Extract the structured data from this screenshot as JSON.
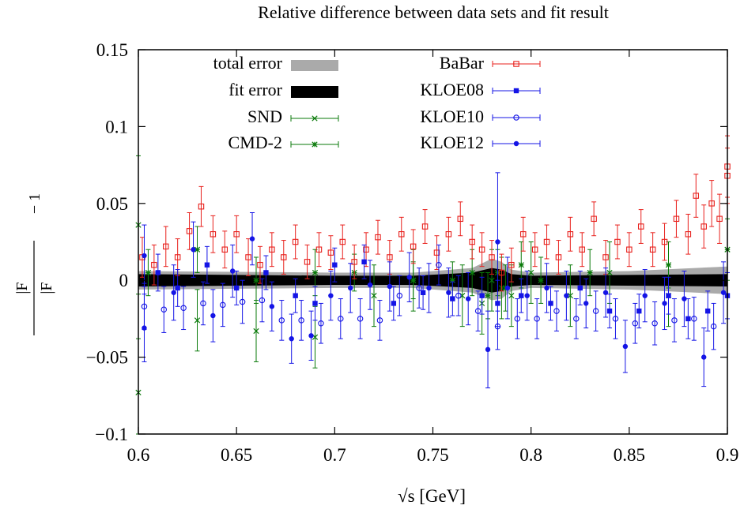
{
  "chart_data": {
    "type": "scatter",
    "title": "Relative difference between data sets and fit result",
    "xlabel": "√s [GeV]",
    "ylabel": "|F_π^V(s)|²_data / |F_π^V(s)|²_fit − 1",
    "ylabel_parts": {
      "numerator": "|F",
      "denominator": "|F",
      "minus_one": "− 1"
    },
    "xlim": [
      0.6,
      0.9
    ],
    "ylim": [
      -0.1,
      0.15
    ],
    "x_ticks": [
      "0.6",
      "0.65",
      "0.7",
      "0.75",
      "0.8",
      "0.85",
      "0.9"
    ],
    "x_tick_values": [
      0.6,
      0.65,
      0.7,
      0.75,
      0.8,
      0.85,
      0.9
    ],
    "y_ticks": [
      "−0.1",
      "−0.05",
      "0",
      "0.05",
      "0.1",
      "0.15"
    ],
    "y_tick_values": [
      -0.1,
      -0.05,
      0,
      0.05,
      0.1,
      0.15
    ],
    "grid": false,
    "legend_position": "top",
    "bands": [
      {
        "name": "total error",
        "color": "#aaaaaa",
        "x": [
          0.6,
          0.65,
          0.7,
          0.74,
          0.77,
          0.78,
          0.785,
          0.79,
          0.8,
          0.85,
          0.9
        ],
        "upper": [
          0.006,
          0.0055,
          0.005,
          0.005,
          0.008,
          0.014,
          0.012,
          0.007,
          0.005,
          0.006,
          0.009
        ],
        "lower": [
          -0.006,
          -0.0055,
          -0.005,
          -0.005,
          -0.008,
          -0.013,
          -0.012,
          -0.007,
          -0.005,
          -0.006,
          -0.009
        ]
      },
      {
        "name": "fit error",
        "color": "#000000",
        "x": [
          0.6,
          0.65,
          0.7,
          0.74,
          0.77,
          0.78,
          0.785,
          0.79,
          0.8,
          0.85,
          0.9
        ],
        "upper": [
          0.004,
          0.0035,
          0.003,
          0.003,
          0.005,
          0.008,
          0.007,
          0.004,
          0.003,
          0.0035,
          0.004
        ],
        "lower": [
          -0.004,
          -0.0035,
          -0.003,
          -0.003,
          -0.005,
          -0.008,
          -0.007,
          -0.004,
          -0.003,
          -0.0035,
          -0.004
        ]
      }
    ],
    "series": [
      {
        "name": "SND",
        "color": "#0a7a0a",
        "marker": "x",
        "points": [
          [
            0.6,
            0.036,
            0.045
          ],
          [
            0.6,
            -0.073,
            0.035
          ],
          [
            0.63,
            -0.026,
            0.02
          ],
          [
            0.66,
            -0.033,
            0.02
          ],
          [
            0.69,
            -0.037,
            0.02
          ],
          [
            0.72,
            -0.01,
            0.02
          ],
          [
            0.74,
            0.0,
            0.02
          ],
          [
            0.765,
            -0.01,
            0.02
          ],
          [
            0.775,
            -0.015,
            0.02
          ],
          [
            0.78,
            0.0,
            0.02
          ],
          [
            0.785,
            -0.005,
            0.02
          ],
          [
            0.79,
            -0.01,
            0.02
          ],
          [
            0.8,
            0.005,
            0.02
          ],
          [
            0.82,
            -0.01,
            0.02
          ],
          [
            0.84,
            0.005,
            0.02
          ],
          [
            0.87,
            -0.01,
            0.02
          ]
        ]
      },
      {
        "name": "CMD-2",
        "color": "#0a7a0a",
        "marker": "star",
        "points": [
          [
            0.605,
            0.005,
            0.015
          ],
          [
            0.63,
            0.02,
            0.015
          ],
          [
            0.66,
            0.0,
            0.015
          ],
          [
            0.69,
            0.005,
            0.015
          ],
          [
            0.71,
            0.005,
            0.012
          ],
          [
            0.74,
            0.0,
            0.012
          ],
          [
            0.76,
            0.0,
            0.012
          ],
          [
            0.77,
            0.005,
            0.015
          ],
          [
            0.778,
            -0.01,
            0.015
          ],
          [
            0.783,
            0.005,
            0.015
          ],
          [
            0.787,
            -0.005,
            0.015
          ],
          [
            0.795,
            0.01,
            0.015
          ],
          [
            0.805,
            0.0,
            0.015
          ],
          [
            0.83,
            0.005,
            0.015
          ],
          [
            0.87,
            0.01,
            0.015
          ],
          [
            0.9,
            0.02,
            0.02
          ]
        ]
      },
      {
        "name": "BaBar",
        "color": "#e8201c",
        "marker": "open-square",
        "points": [
          [
            0.602,
            0.015,
            0.013
          ],
          [
            0.608,
            0.01,
            0.013
          ],
          [
            0.614,
            0.022,
            0.013
          ],
          [
            0.62,
            0.015,
            0.012
          ],
          [
            0.626,
            0.032,
            0.012
          ],
          [
            0.632,
            0.048,
            0.013
          ],
          [
            0.638,
            0.03,
            0.012
          ],
          [
            0.644,
            0.02,
            0.012
          ],
          [
            0.65,
            0.03,
            0.012
          ],
          [
            0.656,
            0.015,
            0.012
          ],
          [
            0.662,
            0.01,
            0.012
          ],
          [
            0.668,
            0.02,
            0.011
          ],
          [
            0.674,
            0.015,
            0.011
          ],
          [
            0.68,
            0.025,
            0.011
          ],
          [
            0.686,
            0.012,
            0.011
          ],
          [
            0.692,
            0.02,
            0.011
          ],
          [
            0.698,
            0.018,
            0.011
          ],
          [
            0.704,
            0.025,
            0.011
          ],
          [
            0.71,
            0.012,
            0.011
          ],
          [
            0.716,
            0.02,
            0.011
          ],
          [
            0.722,
            0.028,
            0.011
          ],
          [
            0.728,
            0.015,
            0.011
          ],
          [
            0.734,
            0.03,
            0.011
          ],
          [
            0.74,
            0.022,
            0.011
          ],
          [
            0.746,
            0.035,
            0.011
          ],
          [
            0.752,
            0.018,
            0.011
          ],
          [
            0.758,
            0.03,
            0.011
          ],
          [
            0.764,
            0.04,
            0.011
          ],
          [
            0.77,
            0.025,
            0.011
          ],
          [
            0.775,
            0.02,
            0.011
          ],
          [
            0.78,
            0.015,
            0.011
          ],
          [
            0.785,
            0.005,
            0.012
          ],
          [
            0.79,
            0.01,
            0.011
          ],
          [
            0.796,
            0.03,
            0.011
          ],
          [
            0.802,
            0.02,
            0.011
          ],
          [
            0.808,
            0.025,
            0.011
          ],
          [
            0.814,
            0.015,
            0.011
          ],
          [
            0.82,
            0.03,
            0.011
          ],
          [
            0.826,
            0.02,
            0.011
          ],
          [
            0.832,
            0.04,
            0.011
          ],
          [
            0.838,
            0.015,
            0.011
          ],
          [
            0.844,
            0.025,
            0.011
          ],
          [
            0.85,
            0.02,
            0.011
          ],
          [
            0.856,
            0.035,
            0.011
          ],
          [
            0.862,
            0.02,
            0.011
          ],
          [
            0.868,
            0.025,
            0.012
          ],
          [
            0.874,
            0.04,
            0.012
          ],
          [
            0.88,
            0.03,
            0.013
          ],
          [
            0.884,
            0.055,
            0.014
          ],
          [
            0.888,
            0.035,
            0.014
          ],
          [
            0.892,
            0.05,
            0.015
          ],
          [
            0.896,
            0.04,
            0.016
          ],
          [
            0.9,
            0.074,
            0.02
          ],
          [
            0.9,
            0.068,
            0.018
          ]
        ]
      },
      {
        "name": "KLOE08",
        "color": "#1414e6",
        "marker": "filled-square",
        "points": [
          [
            0.61,
            0.005,
            0.012
          ],
          [
            0.62,
            -0.005,
            0.012
          ],
          [
            0.635,
            0.01,
            0.012
          ],
          [
            0.65,
            -0.005,
            0.011
          ],
          [
            0.665,
            0.005,
            0.011
          ],
          [
            0.68,
            -0.01,
            0.011
          ],
          [
            0.69,
            -0.015,
            0.011
          ],
          [
            0.7,
            0.01,
            0.011
          ],
          [
            0.715,
            0.012,
            0.011
          ],
          [
            0.73,
            -0.015,
            0.011
          ],
          [
            0.745,
            -0.008,
            0.011
          ],
          [
            0.76,
            -0.012,
            0.011
          ],
          [
            0.775,
            -0.01,
            0.012
          ],
          [
            0.783,
            -0.015,
            0.015
          ],
          [
            0.795,
            -0.01,
            0.011
          ],
          [
            0.81,
            -0.015,
            0.011
          ],
          [
            0.825,
            -0.005,
            0.011
          ],
          [
            0.84,
            -0.02,
            0.011
          ],
          [
            0.855,
            -0.02,
            0.011
          ],
          [
            0.87,
            -0.01,
            0.012
          ],
          [
            0.88,
            -0.025,
            0.013
          ],
          [
            0.89,
            -0.02,
            0.013
          ],
          [
            0.9,
            -0.01,
            0.015
          ]
        ]
      },
      {
        "name": "KLOE10",
        "color": "#1414e6",
        "marker": "open-circle",
        "points": [
          [
            0.603,
            -0.017,
            0.015
          ],
          [
            0.613,
            -0.019,
            0.015
          ],
          [
            0.623,
            -0.018,
            0.014
          ],
          [
            0.633,
            -0.015,
            0.014
          ],
          [
            0.643,
            -0.016,
            0.014
          ],
          [
            0.653,
            -0.014,
            0.014
          ],
          [
            0.663,
            -0.013,
            0.014
          ],
          [
            0.673,
            -0.026,
            0.013
          ],
          [
            0.683,
            -0.026,
            0.013
          ],
          [
            0.693,
            -0.028,
            0.013
          ],
          [
            0.703,
            -0.025,
            0.013
          ],
          [
            0.713,
            -0.025,
            0.013
          ],
          [
            0.723,
            -0.026,
            0.013
          ],
          [
            0.733,
            -0.01,
            0.013
          ],
          [
            0.743,
            -0.005,
            0.013
          ],
          [
            0.753,
            0.01,
            0.013
          ],
          [
            0.763,
            -0.01,
            0.013
          ],
          [
            0.773,
            -0.02,
            0.013
          ],
          [
            0.783,
            -0.03,
            0.015
          ],
          [
            0.793,
            -0.025,
            0.013
          ],
          [
            0.803,
            -0.025,
            0.013
          ],
          [
            0.813,
            -0.02,
            0.013
          ],
          [
            0.823,
            -0.025,
            0.013
          ],
          [
            0.833,
            -0.02,
            0.013
          ],
          [
            0.843,
            -0.025,
            0.013
          ],
          [
            0.853,
            -0.028,
            0.013
          ],
          [
            0.863,
            -0.028,
            0.014
          ],
          [
            0.873,
            -0.026,
            0.014
          ],
          [
            0.883,
            -0.025,
            0.014
          ],
          [
            0.893,
            -0.03,
            0.015
          ]
        ]
      },
      {
        "name": "KLOE12",
        "color": "#1414e6",
        "marker": "filled-circle",
        "points": [
          [
            0.603,
            -0.031,
            0.022
          ],
          [
            0.603,
            0.016,
            0.02
          ],
          [
            0.618,
            -0.008,
            0.018
          ],
          [
            0.628,
            0.02,
            0.018
          ],
          [
            0.638,
            -0.023,
            0.017
          ],
          [
            0.648,
            0.006,
            0.017
          ],
          [
            0.658,
            0.027,
            0.017
          ],
          [
            0.668,
            -0.017,
            0.016
          ],
          [
            0.678,
            -0.038,
            0.016
          ],
          [
            0.688,
            -0.036,
            0.016
          ],
          [
            0.698,
            -0.01,
            0.016
          ],
          [
            0.708,
            -0.005,
            0.016
          ],
          [
            0.718,
            -0.003,
            0.016
          ],
          [
            0.728,
            -0.004,
            0.016
          ],
          [
            0.738,
            0.002,
            0.016
          ],
          [
            0.748,
            -0.005,
            0.016
          ],
          [
            0.758,
            -0.008,
            0.016
          ],
          [
            0.768,
            -0.012,
            0.017
          ],
          [
            0.778,
            -0.045,
            0.025
          ],
          [
            0.783,
            0.025,
            0.045
          ],
          [
            0.788,
            -0.005,
            0.02
          ],
          [
            0.798,
            -0.01,
            0.016
          ],
          [
            0.808,
            -0.005,
            0.016
          ],
          [
            0.818,
            -0.01,
            0.016
          ],
          [
            0.828,
            -0.015,
            0.016
          ],
          [
            0.838,
            -0.008,
            0.016
          ],
          [
            0.848,
            -0.043,
            0.017
          ],
          [
            0.858,
            -0.01,
            0.017
          ],
          [
            0.868,
            -0.015,
            0.017
          ],
          [
            0.878,
            -0.012,
            0.018
          ],
          [
            0.888,
            -0.05,
            0.019
          ],
          [
            0.898,
            -0.008,
            0.02
          ]
        ]
      }
    ]
  }
}
